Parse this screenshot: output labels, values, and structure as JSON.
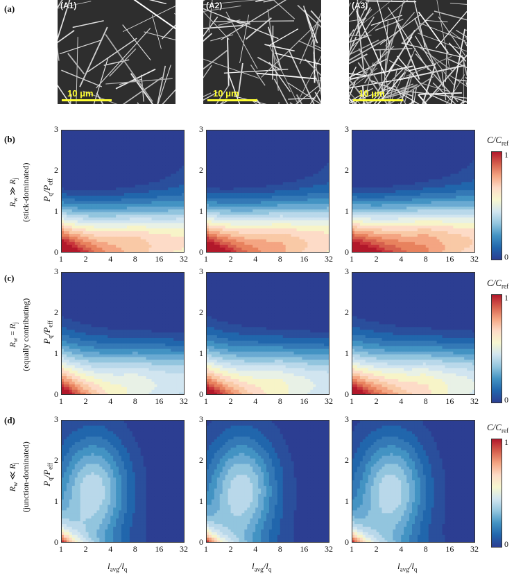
{
  "panels": {
    "a": "(a)",
    "b": "(b)",
    "c": "(c)",
    "d": "(d)"
  },
  "sem": {
    "labels": [
      "(A1)",
      "(A2)",
      "(A3)"
    ],
    "scale_text": "10 μm"
  },
  "rows": [
    {
      "id": "b",
      "line1_pre": "R",
      "line1_sub": "w",
      "line1_rel": " ≫ ",
      "line1_post": "R",
      "line1_sub2": "j",
      "line2": "(stick-dominated)"
    },
    {
      "id": "c",
      "line1_pre": "R",
      "line1_sub": "w",
      "line1_rel": " = ",
      "line1_post": "R",
      "line1_sub2": "j",
      "line2": "(equally contributing)"
    },
    {
      "id": "d",
      "line1_pre": "R",
      "line1_sub": "w",
      "line1_rel": " ≪ ",
      "line1_post": "R",
      "line1_sub2": "j",
      "line2": "(junction-dominated)"
    }
  ],
  "axes": {
    "ylabel_main": "P",
    "ylabel_sub": "q",
    "ylabel_div": "/P",
    "ylabel_sub2": "eff",
    "xlabel_main": "l",
    "xlabel_sub": "avg",
    "xlabel_div": "/l",
    "xlabel_sub2": "q",
    "xticks": [
      "1",
      "2",
      "4",
      "8",
      "16",
      "32"
    ],
    "yticks": [
      "0",
      "1",
      "2",
      "3"
    ]
  },
  "colorbar": {
    "title_main": "C",
    "title_div": "/C",
    "title_sub": "ref",
    "max_label": "1",
    "min_label": "0",
    "colors": [
      "#b2182b",
      "#d6604d",
      "#f4a582",
      "#fddbc7",
      "#f7f7d0",
      "#d1e5f0",
      "#92c5de",
      "#4393c3",
      "#2166ac",
      "#2c3e92"
    ]
  },
  "chart_data": [
    {
      "type": "heatmap",
      "row": "b",
      "column": "A1",
      "xscale": "log2",
      "x_range": [
        1,
        32
      ],
      "y_range": [
        0,
        3
      ],
      "value_range": [
        0,
        1
      ]
    },
    {
      "type": "heatmap",
      "row": "b",
      "column": "A2",
      "xscale": "log2",
      "x_range": [
        1,
        32
      ],
      "y_range": [
        0,
        3
      ],
      "value_range": [
        0,
        1
      ]
    },
    {
      "type": "heatmap",
      "row": "b",
      "column": "A3",
      "xscale": "log2",
      "x_range": [
        1,
        32
      ],
      "y_range": [
        0,
        3
      ],
      "value_range": [
        0,
        1
      ]
    },
    {
      "type": "heatmap",
      "row": "c",
      "column": "A1",
      "xscale": "log2",
      "x_range": [
        1,
        32
      ],
      "y_range": [
        0,
        3
      ],
      "value_range": [
        0,
        1
      ]
    },
    {
      "type": "heatmap",
      "row": "c",
      "column": "A2",
      "xscale": "log2",
      "x_range": [
        1,
        32
      ],
      "y_range": [
        0,
        3
      ],
      "value_range": [
        0,
        1
      ]
    },
    {
      "type": "heatmap",
      "row": "c",
      "column": "A3",
      "xscale": "log2",
      "x_range": [
        1,
        32
      ],
      "y_range": [
        0,
        3
      ],
      "value_range": [
        0,
        1
      ]
    },
    {
      "type": "heatmap",
      "row": "d",
      "column": "A1",
      "xscale": "log2",
      "x_range": [
        1,
        32
      ],
      "y_range": [
        0,
        3
      ],
      "value_range": [
        0,
        1
      ]
    },
    {
      "type": "heatmap",
      "row": "d",
      "column": "A2",
      "xscale": "log2",
      "x_range": [
        1,
        32
      ],
      "y_range": [
        0,
        3
      ],
      "value_range": [
        0,
        1
      ]
    },
    {
      "type": "heatmap",
      "row": "d",
      "column": "A3",
      "xscale": "log2",
      "x_range": [
        1,
        32
      ],
      "y_range": [
        0,
        3
      ],
      "value_range": [
        0,
        1
      ]
    }
  ]
}
